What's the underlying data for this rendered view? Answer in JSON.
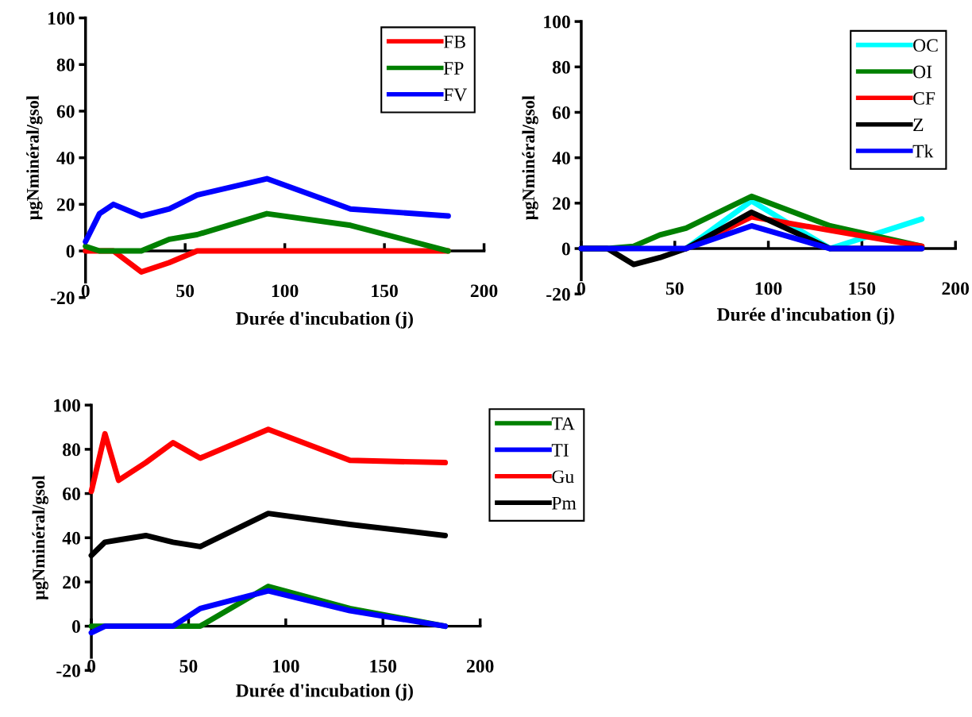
{
  "chart_data": [
    {
      "type": "line",
      "xlabel": "Durée d'incubation (j)",
      "ylabel": "µgNminéral/gsol",
      "xlim": [
        0,
        200
      ],
      "ylim": [
        -20,
        100
      ],
      "xticks": [
        0,
        50,
        100,
        150,
        200
      ],
      "yticks": [
        -20,
        0,
        20,
        40,
        60,
        80,
        100
      ],
      "grid": false,
      "legend": "top right",
      "x": [
        0,
        7,
        14,
        28,
        42,
        56,
        91,
        133,
        182
      ],
      "series": [
        {
          "name": "FB",
          "color": "#ff0000",
          "values": [
            0,
            0,
            0,
            -9,
            -5,
            0,
            0,
            0,
            0
          ]
        },
        {
          "name": "FP",
          "color": "#008000",
          "values": [
            2,
            0,
            0,
            0,
            5,
            7,
            16,
            11,
            0
          ]
        },
        {
          "name": "FV",
          "color": "#0000ff",
          "values": [
            4,
            16,
            20,
            15,
            18,
            24,
            31,
            18,
            15
          ]
        }
      ]
    },
    {
      "type": "line",
      "xlabel": "Durée d'incubation (j)",
      "ylabel": "µgNminéral/gsol",
      "xlim": [
        0,
        200
      ],
      "ylim": [
        -20,
        100
      ],
      "xticks": [
        0,
        50,
        100,
        150,
        200
      ],
      "yticks": [
        -20,
        0,
        20,
        40,
        60,
        80,
        100
      ],
      "grid": false,
      "legend": "top right",
      "x": [
        0,
        7,
        14,
        28,
        42,
        56,
        91,
        133,
        182
      ],
      "series": [
        {
          "name": "OC",
          "color": "#00ffff",
          "values": [
            null,
            null,
            null,
            null,
            null,
            0,
            21,
            0,
            13
          ]
        },
        {
          "name": "OI",
          "color": "#008000",
          "values": [
            0,
            0,
            0,
            1,
            6,
            9,
            23,
            10,
            1
          ]
        },
        {
          "name": "CF",
          "color": "#ff0000",
          "values": [
            null,
            null,
            null,
            null,
            null,
            0,
            14,
            8,
            1
          ]
        },
        {
          "name": "Z",
          "color": "#000000",
          "values": [
            0,
            0,
            0,
            -7,
            -4,
            0,
            16,
            0,
            0
          ]
        },
        {
          "name": "Tk",
          "color": "#0000ff",
          "values": [
            0,
            0,
            0,
            0,
            0,
            0,
            10,
            0,
            0
          ]
        }
      ]
    },
    {
      "type": "line",
      "xlabel": "Durée d'incubation (j)",
      "ylabel": "µgNminéral/gsol",
      "xlim": [
        0,
        200
      ],
      "ylim": [
        -20,
        100
      ],
      "xticks": [
        0,
        50,
        100,
        150,
        200
      ],
      "yticks": [
        -20,
        0,
        20,
        40,
        60,
        80,
        100
      ],
      "grid": false,
      "legend": "right",
      "x": [
        0,
        7,
        14,
        28,
        42,
        56,
        91,
        133,
        182
      ],
      "series": [
        {
          "name": "TA",
          "color": "#008000",
          "values": [
            0,
            0,
            0,
            0,
            0,
            0,
            18,
            8,
            0
          ]
        },
        {
          "name": "TI",
          "color": "#0000ff",
          "values": [
            -3,
            0,
            0,
            0,
            0,
            8,
            16,
            7,
            0
          ]
        },
        {
          "name": "Gu",
          "color": "#ff0000",
          "values": [
            61,
            87,
            66,
            74,
            83,
            76,
            89,
            75,
            74
          ]
        },
        {
          "name": "Pm",
          "color": "#000000",
          "values": [
            32,
            38,
            39,
            41,
            38,
            36,
            51,
            46,
            41
          ]
        }
      ]
    }
  ]
}
